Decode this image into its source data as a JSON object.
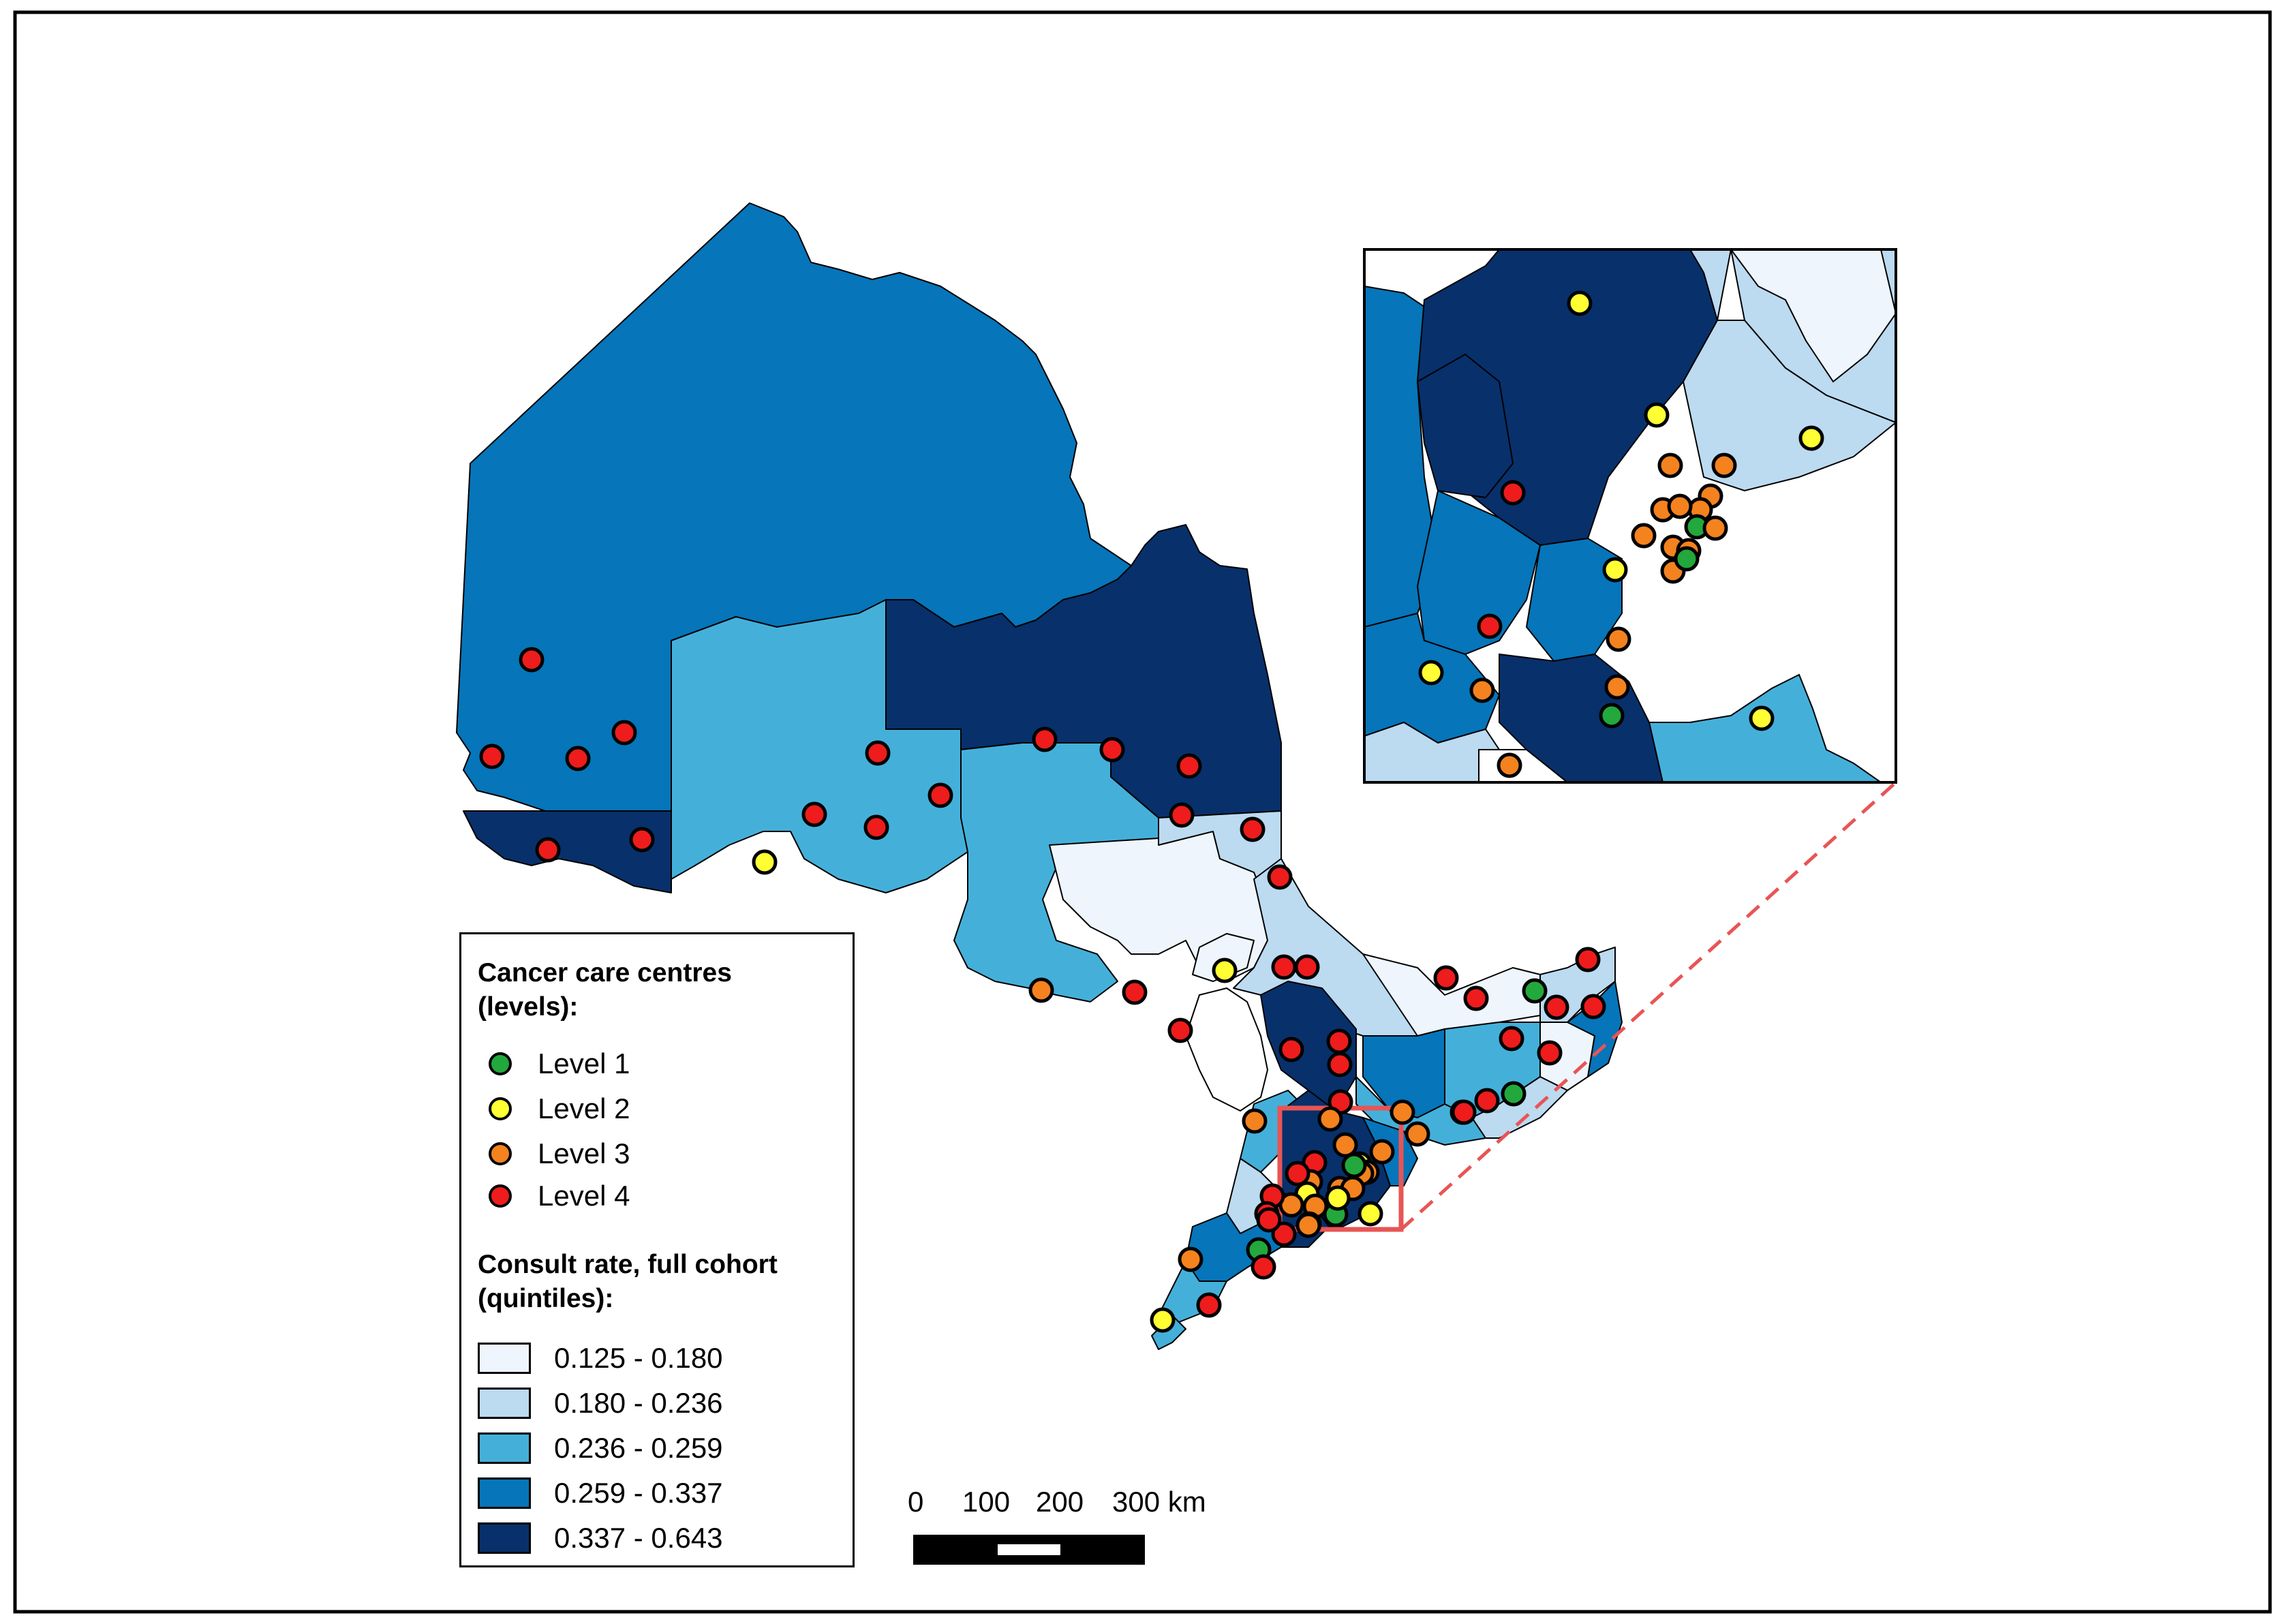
{
  "legend": {
    "centres_title_line1": "Cancer care centres",
    "centres_title_line2": "(levels):",
    "levels": [
      {
        "label": "Level 1",
        "color": "#22a83c"
      },
      {
        "label": "Level 2",
        "color": "#ffff33"
      },
      {
        "label": "Level 3",
        "color": "#f4821f"
      },
      {
        "label": "Level 4",
        "color": "#ee1c1c"
      }
    ],
    "rate_title_line1": "Consult rate, full cohort",
    "rate_title_line2": "(quintiles):",
    "quintiles": [
      {
        "label": "0.125 - 0.180",
        "color": "#eef5fc"
      },
      {
        "label": "0.180 - 0.236",
        "color": "#bcdaf0"
      },
      {
        "label": "0.236 - 0.259",
        "color": "#44b0da"
      },
      {
        "label": "0.259 - 0.337",
        "color": "#0675b9"
      },
      {
        "label": "0.337 - 0.643",
        "color": "#08306b"
      }
    ]
  },
  "scale_bar": {
    "ticks": [
      "0",
      "100",
      "200",
      "300 km"
    ]
  },
  "colors": {
    "inset_box": "#e85555",
    "water": "#ffffff",
    "outline": "#000000"
  }
}
